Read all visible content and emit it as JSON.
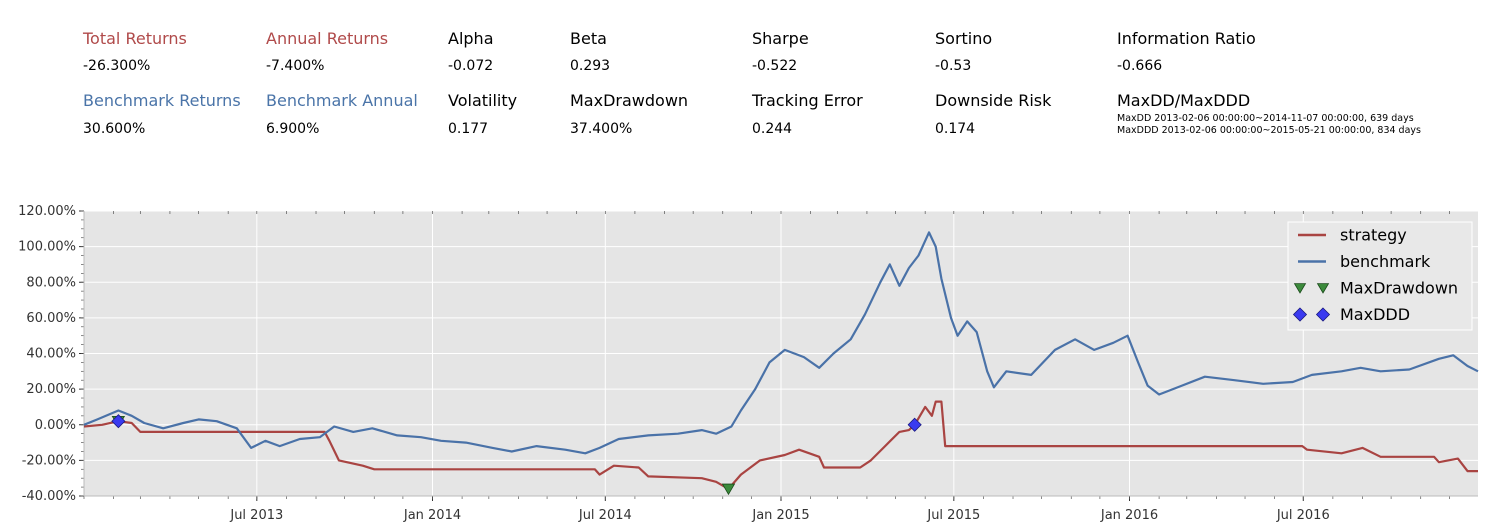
{
  "metrics": {
    "row1": [
      {
        "label": "Total Returns",
        "value": "-26.300%",
        "color": "red"
      },
      {
        "label": "Annual Returns",
        "value": "-7.400%",
        "color": "red"
      },
      {
        "label": "Alpha",
        "value": "-0.072",
        "color": "black"
      },
      {
        "label": "Beta",
        "value": "0.293",
        "color": "black"
      },
      {
        "label": "Sharpe",
        "value": "-0.522",
        "color": "black"
      },
      {
        "label": "Sortino",
        "value": "-0.53",
        "color": "black"
      },
      {
        "label": "Information Ratio",
        "value": "-0.666",
        "color": "black"
      }
    ],
    "row2": [
      {
        "label": "Benchmark Returns",
        "value": "30.600%",
        "color": "blue"
      },
      {
        "label": "Benchmark Annual",
        "value": "6.900%",
        "color": "blue"
      },
      {
        "label": "Volatility",
        "value": "0.177",
        "color": "black"
      },
      {
        "label": "MaxDrawdown",
        "value": "37.400%",
        "color": "black"
      },
      {
        "label": "Tracking Error",
        "value": "0.244",
        "color": "black"
      },
      {
        "label": "Downside Risk",
        "value": "0.174",
        "color": "black"
      },
      {
        "label": "MaxDD/MaxDDD",
        "value": "",
        "color": "black"
      }
    ],
    "maxdd_line": "MaxDD  2013-02-06 00:00:00~2014-11-07 00:00:00, 639 days",
    "maxddd_line": "MaxDDD 2013-02-06 00:00:00~2015-05-21 00:00:00, 834 days"
  },
  "chart_data": {
    "type": "line",
    "x_start": "2013-01-01",
    "x_end": "2016-12-31",
    "x_ticks": [
      {
        "date": "2013-07-01",
        "label": "Jul 2013"
      },
      {
        "date": "2014-01-01",
        "label": "Jan 2014"
      },
      {
        "date": "2014-07-01",
        "label": "Jul 2014"
      },
      {
        "date": "2015-01-01",
        "label": "Jan 2015"
      },
      {
        "date": "2015-07-01",
        "label": "Jul 2015"
      },
      {
        "date": "2016-01-01",
        "label": "Jan 2016"
      },
      {
        "date": "2016-07-01",
        "label": "Jul 2016"
      }
    ],
    "ylim": [
      -40,
      120
    ],
    "y_ticks": [
      -40,
      -20,
      0,
      20,
      40,
      60,
      80,
      100,
      120
    ],
    "y_tick_labels": [
      "-40.00%",
      "-20.00%",
      "0.00%",
      "20.00%",
      "40.00%",
      "60.00%",
      "80.00%",
      "100.00%",
      "120.00%"
    ],
    "grid": true,
    "legend_position": "top-right",
    "colors": {
      "strategy": "#a94442",
      "benchmark": "#4a72a8",
      "maxdd": "#3b8a3b",
      "maxddd": "#3a3af0",
      "plot_bg": "#e5e5e5"
    },
    "series": [
      {
        "name": "strategy",
        "points": [
          [
            "2013-01-01",
            -1
          ],
          [
            "2013-01-20",
            0
          ],
          [
            "2013-02-06",
            2
          ],
          [
            "2013-02-20",
            1
          ],
          [
            "2013-03-01",
            -4
          ],
          [
            "2013-06-25",
            -4
          ],
          [
            "2013-09-10",
            -4
          ],
          [
            "2013-09-15",
            -9
          ],
          [
            "2013-09-25",
            -20
          ],
          [
            "2013-10-20",
            -23
          ],
          [
            "2013-11-01",
            -25
          ],
          [
            "2014-06-20",
            -25
          ],
          [
            "2014-06-25",
            -28
          ],
          [
            "2014-07-10",
            -23
          ],
          [
            "2014-08-05",
            -24
          ],
          [
            "2014-08-15",
            -29
          ],
          [
            "2014-10-10",
            -30
          ],
          [
            "2014-10-25",
            -32
          ],
          [
            "2014-11-07",
            -36
          ],
          [
            "2014-11-20",
            -28
          ],
          [
            "2014-12-10",
            -20
          ],
          [
            "2015-01-05",
            -17
          ],
          [
            "2015-01-20",
            -14
          ],
          [
            "2015-02-10",
            -18
          ],
          [
            "2015-02-15",
            -24
          ],
          [
            "2015-03-25",
            -24
          ],
          [
            "2015-04-05",
            -20
          ],
          [
            "2015-04-20",
            -12
          ],
          [
            "2015-05-05",
            -4
          ],
          [
            "2015-05-15",
            -3
          ],
          [
            "2015-05-21",
            0
          ],
          [
            "2015-06-01",
            10
          ],
          [
            "2015-06-08",
            5
          ],
          [
            "2015-06-12",
            13
          ],
          [
            "2015-06-18",
            13
          ],
          [
            "2015-06-22",
            -12
          ],
          [
            "2016-06-30",
            -12
          ],
          [
            "2016-07-05",
            -14
          ],
          [
            "2016-08-10",
            -16
          ],
          [
            "2016-09-01",
            -13
          ],
          [
            "2016-09-20",
            -18
          ],
          [
            "2016-11-15",
            -18
          ],
          [
            "2016-11-20",
            -21
          ],
          [
            "2016-12-10",
            -19
          ],
          [
            "2016-12-20",
            -26
          ],
          [
            "2016-12-31",
            -26
          ]
        ]
      },
      {
        "name": "benchmark",
        "points": [
          [
            "2013-01-01",
            0
          ],
          [
            "2013-01-15",
            3
          ],
          [
            "2013-02-06",
            8
          ],
          [
            "2013-02-20",
            5
          ],
          [
            "2013-03-05",
            1
          ],
          [
            "2013-03-25",
            -2
          ],
          [
            "2013-04-15",
            1
          ],
          [
            "2013-05-01",
            3
          ],
          [
            "2013-05-20",
            2
          ],
          [
            "2013-06-10",
            -2
          ],
          [
            "2013-06-25",
            -13
          ],
          [
            "2013-07-10",
            -9
          ],
          [
            "2013-07-25",
            -12
          ],
          [
            "2013-08-15",
            -8
          ],
          [
            "2013-09-05",
            -7
          ],
          [
            "2013-09-20",
            -1
          ],
          [
            "2013-10-10",
            -4
          ],
          [
            "2013-10-30",
            -2
          ],
          [
            "2013-11-25",
            -6
          ],
          [
            "2013-12-20",
            -7
          ],
          [
            "2014-01-10",
            -9
          ],
          [
            "2014-02-05",
            -10
          ],
          [
            "2014-03-05",
            -13
          ],
          [
            "2014-03-25",
            -15
          ],
          [
            "2014-04-20",
            -12
          ],
          [
            "2014-05-20",
            -14
          ],
          [
            "2014-06-10",
            -16
          ],
          [
            "2014-06-25",
            -13
          ],
          [
            "2014-07-15",
            -8
          ],
          [
            "2014-08-15",
            -6
          ],
          [
            "2014-09-15",
            -5
          ],
          [
            "2014-10-10",
            -3
          ],
          [
            "2014-10-25",
            -5
          ],
          [
            "2014-11-10",
            -1
          ],
          [
            "2014-11-20",
            8
          ],
          [
            "2014-12-05",
            20
          ],
          [
            "2014-12-20",
            35
          ],
          [
            "2015-01-05",
            42
          ],
          [
            "2015-01-25",
            38
          ],
          [
            "2015-02-10",
            32
          ],
          [
            "2015-02-25",
            40
          ],
          [
            "2015-03-15",
            48
          ],
          [
            "2015-03-30",
            62
          ],
          [
            "2015-04-15",
            80
          ],
          [
            "2015-04-25",
            90
          ],
          [
            "2015-05-05",
            78
          ],
          [
            "2015-05-15",
            88
          ],
          [
            "2015-05-25",
            95
          ],
          [
            "2015-06-05",
            108
          ],
          [
            "2015-06-12",
            100
          ],
          [
            "2015-06-18",
            82
          ],
          [
            "2015-06-28",
            60
          ],
          [
            "2015-07-05",
            50
          ],
          [
            "2015-07-15",
            58
          ],
          [
            "2015-07-25",
            52
          ],
          [
            "2015-08-05",
            30
          ],
          [
            "2015-08-12",
            21
          ],
          [
            "2015-08-25",
            30
          ],
          [
            "2015-09-20",
            28
          ],
          [
            "2015-10-15",
            42
          ],
          [
            "2015-11-05",
            48
          ],
          [
            "2015-11-25",
            42
          ],
          [
            "2015-12-15",
            46
          ],
          [
            "2015-12-30",
            50
          ],
          [
            "2016-01-10",
            35
          ],
          [
            "2016-01-20",
            22
          ],
          [
            "2016-02-01",
            17
          ],
          [
            "2016-02-25",
            22
          ],
          [
            "2016-03-20",
            27
          ],
          [
            "2016-04-20",
            25
          ],
          [
            "2016-05-20",
            23
          ],
          [
            "2016-06-20",
            24
          ],
          [
            "2016-07-10",
            28
          ],
          [
            "2016-08-10",
            30
          ],
          [
            "2016-08-30",
            32
          ],
          [
            "2016-09-20",
            30
          ],
          [
            "2016-10-20",
            31
          ],
          [
            "2016-11-20",
            37
          ],
          [
            "2016-12-05",
            39
          ],
          [
            "2016-12-20",
            33
          ],
          [
            "2016-12-31",
            30
          ]
        ]
      }
    ],
    "markers": [
      {
        "name": "MaxDrawdown",
        "shape": "triangle-down",
        "points": [
          [
            "2013-02-06",
            2
          ],
          [
            "2014-11-07",
            -36
          ]
        ]
      },
      {
        "name": "MaxDDD",
        "shape": "diamond",
        "points": [
          [
            "2013-02-06",
            2
          ],
          [
            "2015-05-21",
            0
          ]
        ]
      }
    ],
    "legend": [
      "strategy",
      "benchmark",
      "MaxDrawdown",
      "MaxDDD"
    ]
  }
}
